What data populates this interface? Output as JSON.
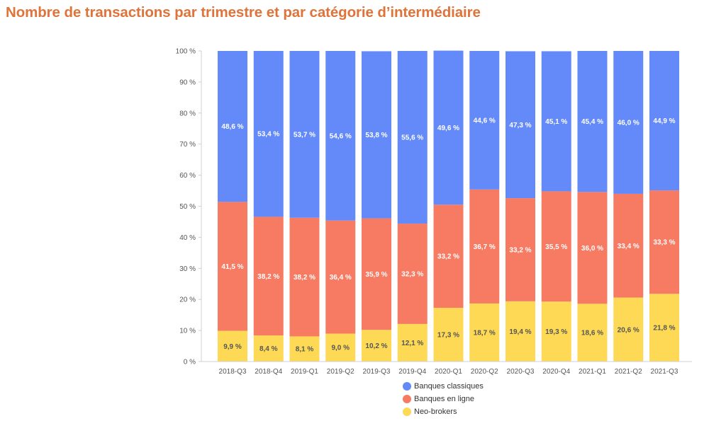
{
  "title": "Nombre de transactions par trimestre et par catégorie d’intermédiaire",
  "colors": {
    "banques_classiques": "#648af9",
    "banques_en_ligne": "#f77b63",
    "neo_brokers": "#fdd955",
    "title": "#e0733a"
  },
  "chart_data": {
    "type": "bar",
    "stacked": true,
    "categories": [
      "2018-Q3",
      "2018-Q4",
      "2019-Q1",
      "2019-Q2",
      "2019-Q3",
      "2019-Q4",
      "2020-Q1",
      "2020-Q2",
      "2020-Q3",
      "2020-Q4",
      "2021-Q1",
      "2021-Q2",
      "2021-Q3"
    ],
    "series": [
      {
        "name": "Neo-brokers",
        "color": "#fdd955",
        "values": [
          9.9,
          8.4,
          8.1,
          9.0,
          10.2,
          12.1,
          17.3,
          18.7,
          19.4,
          19.3,
          18.6,
          20.6,
          21.8
        ],
        "labels": [
          "9,9 %",
          "8,4 %",
          "8,1 %",
          "9,0 %",
          "10,2 %",
          "12,1 %",
          "17,3 %",
          "18,7 %",
          "19,4 %",
          "19,3 %",
          "18,6 %",
          "20,6 %",
          "21,8 %"
        ]
      },
      {
        "name": "Banques en ligne",
        "color": "#f77b63",
        "values": [
          41.5,
          38.2,
          38.2,
          36.4,
          35.9,
          32.3,
          33.2,
          36.7,
          33.2,
          35.5,
          36.0,
          33.4,
          33.3
        ],
        "labels": [
          "41,5 %",
          "38,2 %",
          "38,2 %",
          "36,4 %",
          "35,9 %",
          "32,3 %",
          "33,2 %",
          "36,7 %",
          "33,2 %",
          "35,5 %",
          "36,0 %",
          "33,4 %",
          "33,3 %"
        ]
      },
      {
        "name": "Banques classiques",
        "color": "#648af9",
        "values": [
          48.6,
          53.4,
          53.7,
          54.6,
          53.8,
          55.6,
          49.6,
          44.6,
          47.3,
          45.1,
          45.4,
          46.0,
          44.9
        ],
        "labels": [
          "48,6 %",
          "53,4 %",
          "53,7 %",
          "54,6 %",
          "53,8 %",
          "55,6 %",
          "49,6 %",
          "44,6 %",
          "47,3 %",
          "45,1 %",
          "45,4 %",
          "46,0 %",
          "44,9 %"
        ]
      }
    ],
    "yticks": [
      "0 %",
      "10 %",
      "20 %",
      "30 %",
      "40 %",
      "50 %",
      "60 %",
      "70 %",
      "80 %",
      "90 %",
      "100 %"
    ],
    "ylim": [
      0,
      100
    ],
    "legend": {
      "position": "bottom",
      "entries": [
        {
          "label": "Banques classiques",
          "color": "#648af9"
        },
        {
          "label": "Banques en ligne",
          "color": "#f77b63"
        },
        {
          "label": "Neo-brokers",
          "color": "#fdd955"
        }
      ]
    }
  }
}
